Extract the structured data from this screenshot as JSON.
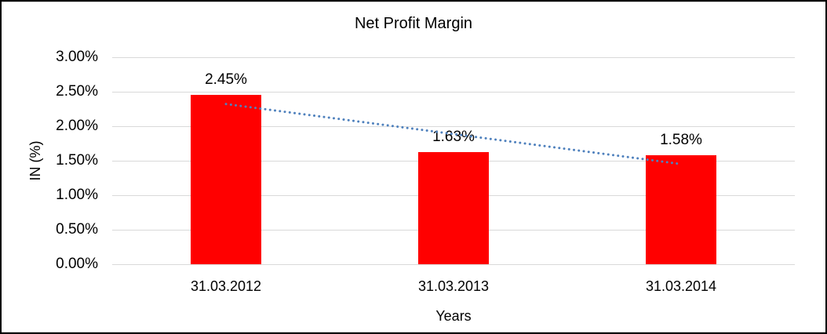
{
  "chart_data": {
    "type": "bar",
    "title": "Net Profit Margin",
    "xlabel": "Years",
    "ylabel": "IN (%)",
    "categories": [
      "31.03.2012",
      "31.03.2013",
      "31.03.2014"
    ],
    "values": [
      2.45,
      1.63,
      1.58
    ],
    "data_labels": [
      "2.45%",
      "1.63%",
      "1.58%"
    ],
    "ylim": [
      0,
      3
    ],
    "ytick_step": 0.5,
    "ytick_labels": [
      "3.00%",
      "2.50%",
      "2.00%",
      "1.50%",
      "1.00%",
      "0.50%",
      "0.00%"
    ],
    "grid": true,
    "legend": "none",
    "bar_color": "#FF0000",
    "gridline_color": "#D9D9D9",
    "text_color": "#000000",
    "trendline": {
      "type": "linear",
      "style": "dotted",
      "color": "#4F81BD"
    }
  }
}
